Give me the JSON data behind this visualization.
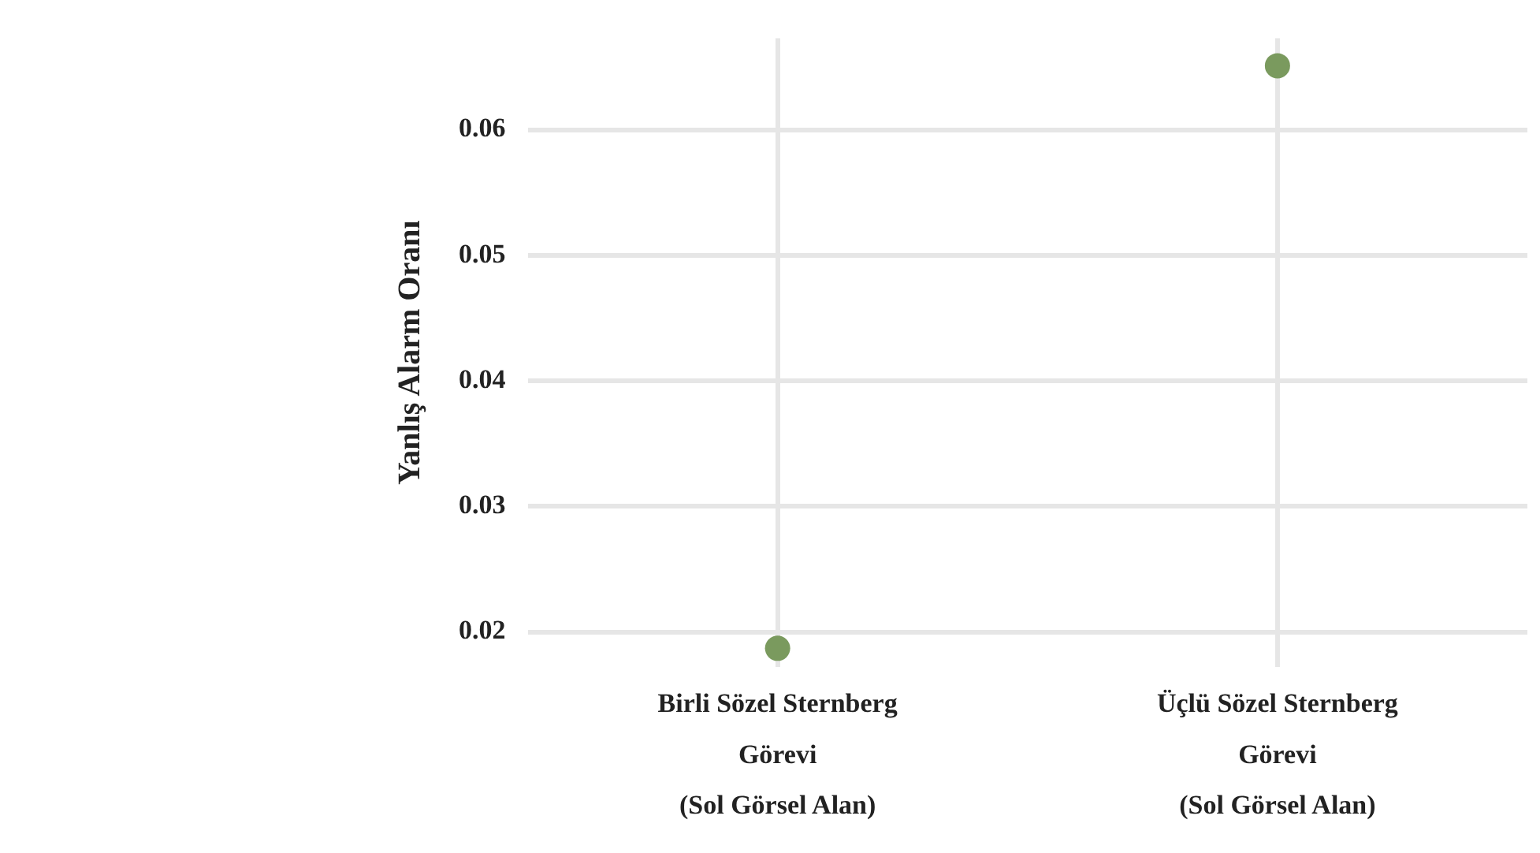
{
  "chart_data": {
    "type": "scatter",
    "ylabel": "Yanlış Alarm Oranı",
    "categories": [
      "Birli Sözel Sternberg Görevi (Sol Görsel Alan)",
      "Üçlü Sözel Sternberg Görevi (Sol Görsel Alan)"
    ],
    "series": [
      {
        "color": "#7a9a5e",
        "values": [
          0.0187,
          0.0651
        ]
      }
    ],
    "ylim": [
      0.0172,
      0.0673
    ],
    "yticks": [
      0.02,
      0.03,
      0.04,
      0.05,
      0.06
    ],
    "grid": true,
    "legend": false,
    "marker": "circle"
  }
}
